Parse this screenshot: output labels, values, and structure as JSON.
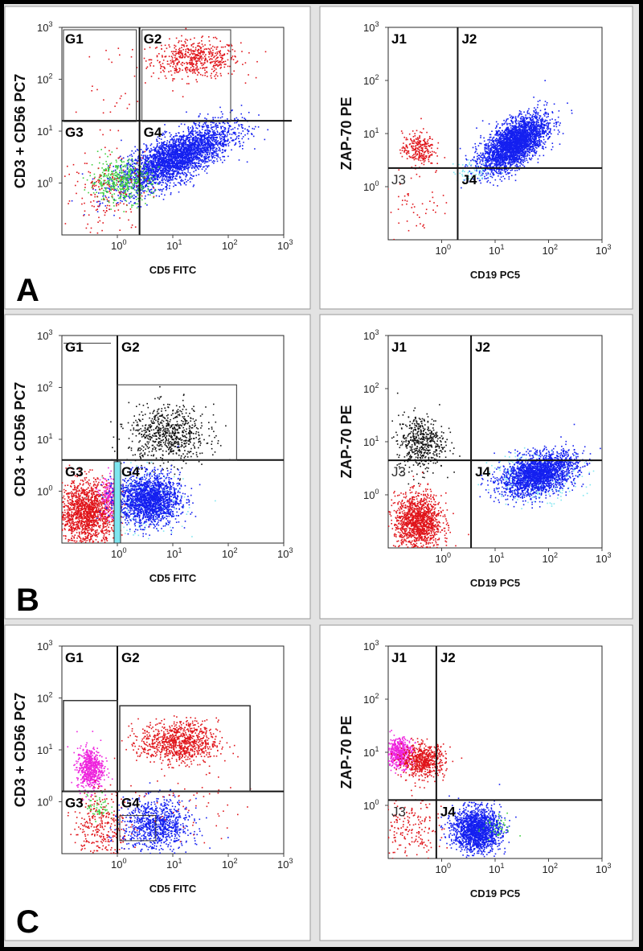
{
  "figure": {
    "panel_letters": [
      "A",
      "B",
      "C"
    ],
    "ticks": [
      "10",
      "10",
      "10",
      "10"
    ],
    "tick_exponents": [
      "0",
      "1",
      "2",
      "3"
    ]
  },
  "colors": {
    "red": "#e0141a",
    "blue": "#1420f0",
    "green": "#3ecf3e",
    "magenta": "#ee22dd",
    "black": "#111111",
    "cyan": "#7fe6f0"
  },
  "chart_data": [
    {
      "type": "scatter",
      "panel": "A",
      "position": "left",
      "xlabel": "CD5 FITC",
      "ylabel": "CD3 + CD56 PC7",
      "xlim": [
        -1,
        3
      ],
      "ylim": [
        -1,
        3
      ],
      "scale": "log10",
      "gate_labels": [
        "G1",
        "G2",
        "G3",
        "G4"
      ],
      "quadrant_x": 0.4,
      "quadrant_y": 1.2,
      "populations": [
        {
          "name": "G2",
          "color": "red",
          "cx": 1.4,
          "cy": 2.4,
          "sx": 0.4,
          "sy": 0.18,
          "n": 550
        },
        {
          "name": "G4",
          "color": "blue",
          "cx": 1.05,
          "cy": 0.5,
          "sx": 0.5,
          "sy": 0.32,
          "n": 3200,
          "corr": 0.72
        },
        {
          "name": "G3-green",
          "color": "green",
          "cx": 0.05,
          "cy": 0.05,
          "sx": 0.28,
          "sy": 0.2,
          "n": 450
        },
        {
          "name": "G3-red",
          "color": "red",
          "cx": -0.2,
          "cy": -0.2,
          "sx": 0.4,
          "sy": 0.4,
          "n": 160
        },
        {
          "name": "G1",
          "color": "red",
          "cx": -0.1,
          "cy": 1.7,
          "sx": 0.3,
          "sy": 0.6,
          "n": 30
        }
      ]
    },
    {
      "type": "scatter",
      "panel": "A",
      "position": "right",
      "xlabel": "CD19 PC5",
      "ylabel": "ZAP-70 PE",
      "xlim": [
        -1,
        3
      ],
      "ylim": [
        -1,
        3
      ],
      "scale": "log10",
      "gate_labels": [
        "J1",
        "J2",
        "J3",
        "J4"
      ],
      "quadrant_x": 0.3,
      "quadrant_y": 0.35,
      "populations": [
        {
          "name": "J2",
          "color": "blue",
          "cx": 1.35,
          "cy": 0.82,
          "sx": 0.3,
          "sy": 0.26,
          "n": 3000,
          "corr": 0.6
        },
        {
          "name": "J1",
          "color": "red",
          "cx": -0.45,
          "cy": 0.72,
          "sx": 0.15,
          "sy": 0.16,
          "n": 260
        },
        {
          "name": "J3",
          "color": "red",
          "cx": -0.45,
          "cy": -0.3,
          "sx": 0.3,
          "sy": 0.35,
          "n": 50
        },
        {
          "name": "J4",
          "color": "cyan",
          "cx": 0.6,
          "cy": 0.3,
          "sx": 0.2,
          "sy": 0.1,
          "n": 60
        }
      ]
    },
    {
      "type": "scatter",
      "panel": "B",
      "position": "left",
      "xlabel": "CD5 FITC",
      "ylabel": "CD3 + CD56 PC7",
      "xlim": [
        -1,
        3
      ],
      "ylim": [
        -1,
        3
      ],
      "scale": "log10",
      "gate_labels": [
        "G1",
        "G2",
        "G3",
        "G4"
      ],
      "quadrant_x": 0.0,
      "quadrant_y": 0.6,
      "populations": [
        {
          "name": "G2",
          "color": "black",
          "cx": 0.9,
          "cy": 1.1,
          "sx": 0.35,
          "sy": 0.28,
          "n": 700
        },
        {
          "name": "G3",
          "color": "red",
          "cx": -0.55,
          "cy": -0.4,
          "sx": 0.26,
          "sy": 0.3,
          "n": 1500
        },
        {
          "name": "G3-mag",
          "color": "magenta",
          "cx": -0.15,
          "cy": -0.1,
          "sx": 0.08,
          "sy": 0.2,
          "n": 150
        },
        {
          "name": "G4-cyan",
          "color": "cyan",
          "cx": 0.5,
          "cy": -0.2,
          "sx": 0.35,
          "sy": 0.32,
          "n": 200
        },
        {
          "name": "G4",
          "color": "blue",
          "cx": 0.55,
          "cy": -0.15,
          "sx": 0.28,
          "sy": 0.24,
          "n": 1900
        }
      ]
    },
    {
      "type": "scatter",
      "panel": "B",
      "position": "right",
      "xlabel": "CD19 PC5",
      "ylabel": "ZAP-70 PE",
      "xlim": [
        -1,
        3
      ],
      "ylim": [
        -1,
        3
      ],
      "scale": "log10",
      "gate_labels": [
        "J1",
        "J2",
        "J3",
        "J4"
      ],
      "quadrant_x": 0.55,
      "quadrant_y": 0.65,
      "populations": [
        {
          "name": "J1",
          "color": "black",
          "cx": -0.4,
          "cy": 1.0,
          "sx": 0.22,
          "sy": 0.26,
          "n": 500
        },
        {
          "name": "J3",
          "color": "red",
          "cx": -0.45,
          "cy": -0.5,
          "sx": 0.22,
          "sy": 0.26,
          "n": 1300
        },
        {
          "name": "J4-cyan",
          "color": "cyan",
          "cx": 1.75,
          "cy": 0.35,
          "sx": 0.42,
          "sy": 0.22,
          "n": 300
        },
        {
          "name": "J4",
          "color": "blue",
          "cx": 1.8,
          "cy": 0.4,
          "sx": 0.35,
          "sy": 0.2,
          "n": 2200,
          "corr": 0.4
        }
      ]
    },
    {
      "type": "scatter",
      "panel": "C",
      "position": "left",
      "xlabel": "CD5 FITC",
      "ylabel": "CD3 + CD56 PC7",
      "xlim": [
        -1,
        3
      ],
      "ylim": [
        -1,
        3
      ],
      "scale": "log10",
      "gate_labels": [
        "G1",
        "G2",
        "G3",
        "G4"
      ],
      "quadrant_x": 0.0,
      "quadrant_y": 0.2,
      "populations": [
        {
          "name": "G2",
          "color": "red",
          "cx": 1.1,
          "cy": 1.15,
          "sx": 0.35,
          "sy": 0.2,
          "n": 900
        },
        {
          "name": "G1",
          "color": "magenta",
          "cx": -0.5,
          "cy": 0.65,
          "sx": 0.12,
          "sy": 0.2,
          "n": 600
        },
        {
          "name": "G3-green",
          "color": "green",
          "cx": -0.35,
          "cy": -0.1,
          "sx": 0.1,
          "sy": 0.12,
          "n": 60
        },
        {
          "name": "G3",
          "color": "red",
          "cx": -0.3,
          "cy": -0.45,
          "sx": 0.25,
          "sy": 0.35,
          "n": 300
        },
        {
          "name": "G4",
          "color": "blue",
          "cx": 0.7,
          "cy": -0.45,
          "sx": 0.3,
          "sy": 0.25,
          "n": 900
        },
        {
          "name": "scatter",
          "color": "red",
          "cx": 1.3,
          "cy": -0.1,
          "sx": 0.5,
          "sy": 0.3,
          "n": 60
        }
      ]
    },
    {
      "type": "scatter",
      "panel": "C",
      "position": "right",
      "xlabel": "CD19 PC5",
      "ylabel": "ZAP-70 PE",
      "xlim": [
        -1,
        3
      ],
      "ylim": [
        -1,
        3
      ],
      "scale": "log10",
      "gate_labels": [
        "J1",
        "J2",
        "J3",
        "J4"
      ],
      "quadrant_x": -0.1,
      "quadrant_y": 0.1,
      "populations": [
        {
          "name": "J1-mag",
          "color": "magenta",
          "cx": -0.8,
          "cy": 1.0,
          "sx": 0.12,
          "sy": 0.14,
          "n": 500
        },
        {
          "name": "J1-red",
          "color": "red",
          "cx": -0.35,
          "cy": 0.85,
          "sx": 0.2,
          "sy": 0.15,
          "n": 600
        },
        {
          "name": "J3",
          "color": "red",
          "cx": -0.6,
          "cy": -0.5,
          "sx": 0.3,
          "sy": 0.35,
          "n": 200
        },
        {
          "name": "J4",
          "color": "blue",
          "cx": 0.65,
          "cy": -0.45,
          "sx": 0.22,
          "sy": 0.2,
          "n": 1700
        },
        {
          "name": "J4-green",
          "color": "green",
          "cx": 1.0,
          "cy": -0.4,
          "sx": 0.15,
          "sy": 0.12,
          "n": 40
        }
      ]
    }
  ]
}
